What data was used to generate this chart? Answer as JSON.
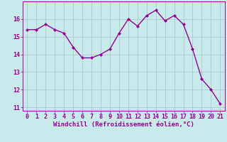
{
  "x": [
    0,
    1,
    2,
    3,
    4,
    5,
    6,
    7,
    8,
    9,
    10,
    11,
    12,
    13,
    14,
    15,
    16,
    17,
    18,
    19,
    20,
    21
  ],
  "y": [
    15.4,
    15.4,
    15.7,
    15.4,
    15.2,
    14.4,
    13.8,
    13.8,
    14.0,
    14.3,
    15.2,
    16.0,
    15.6,
    16.2,
    16.5,
    15.9,
    16.2,
    15.7,
    14.3,
    12.6,
    12.0,
    11.2
  ],
  "line_color": "#990099",
  "marker_color": "#990099",
  "bg_color": "#c8eaea",
  "grid_color": "#aacccc",
  "xlabel": "Windchill (Refroidissement éolien,°C)",
  "xlabel_color": "#990099",
  "tick_color": "#990099",
  "spine_color": "#990099",
  "ylim": [
    10.8,
    17.0
  ],
  "xlim": [
    -0.5,
    21.5
  ],
  "yticks": [
    11,
    12,
    13,
    14,
    15,
    16
  ],
  "xticks": [
    0,
    1,
    2,
    3,
    4,
    5,
    6,
    7,
    8,
    9,
    10,
    11,
    12,
    13,
    14,
    15,
    16,
    17,
    18,
    19,
    20,
    21
  ],
  "xlabel_fontsize": 6.5,
  "tick_fontsize": 6.0,
  "linewidth": 1.0,
  "markersize": 2.0
}
